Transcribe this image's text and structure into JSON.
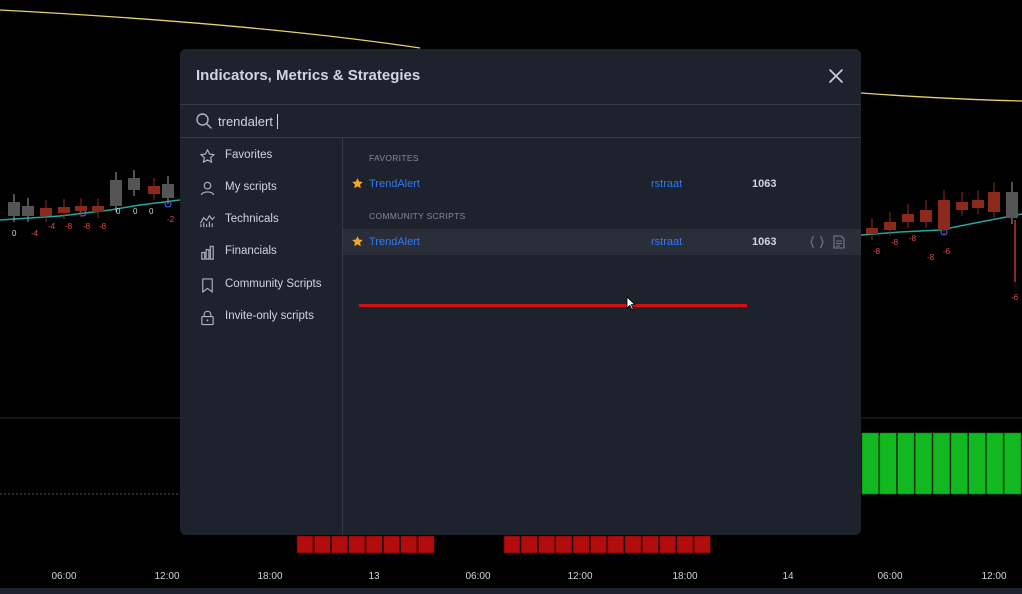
{
  "dialog": {
    "title": "Indicators, Metrics & Strategies",
    "close_icon": "close-icon"
  },
  "search": {
    "value": "trendalert",
    "icon": "search-icon"
  },
  "sidebar": {
    "items": [
      {
        "label": "Favorites",
        "icon": "star-outline-icon"
      },
      {
        "label": "My scripts",
        "icon": "user-icon"
      },
      {
        "label": "Technicals",
        "icon": "technicals-chart-icon"
      },
      {
        "label": "Financials",
        "icon": "bar-chart-icon"
      },
      {
        "label": "Community Scripts",
        "icon": "bookmark-icon"
      },
      {
        "label": "Invite-only scripts",
        "icon": "lock-icon"
      }
    ]
  },
  "results": {
    "sections": [
      {
        "header": "FAVORITES",
        "rows": [
          {
            "name": "TrendAlert",
            "author": "rstraat",
            "count": "1063",
            "favorite": true
          }
        ]
      },
      {
        "header": "COMMUNITY SCRIPTS",
        "rows": [
          {
            "name": "TrendAlert",
            "author": "rstraat",
            "count": "1063",
            "favorite": true,
            "actions": [
              "code-icon",
              "document-icon"
            ]
          }
        ]
      }
    ]
  },
  "chart": {
    "time_axis": [
      "06:00",
      "12:00",
      "18:00",
      "13",
      "06:00",
      "12:00",
      "18:00",
      "14",
      "06:00",
      "12:00"
    ],
    "left_values": [
      "0",
      "-4",
      "-4",
      "-8",
      "-8",
      "-8",
      "0",
      "0",
      "0",
      "-2"
    ],
    "right_values": [
      "-8",
      "-8",
      "-8",
      "-8",
      "-6",
      "-6"
    ],
    "colors": {
      "background": "#000000",
      "ma_line": "#26a69a",
      "price_line": "#e6d36a",
      "down_candle": "#8b2a1c",
      "up_candle": "#9e9e9e",
      "bull_bars": "#12b81f",
      "bear_bars": "#b10d0d",
      "accent_blue": "#3179f5",
      "star": "#f5a623"
    }
  }
}
